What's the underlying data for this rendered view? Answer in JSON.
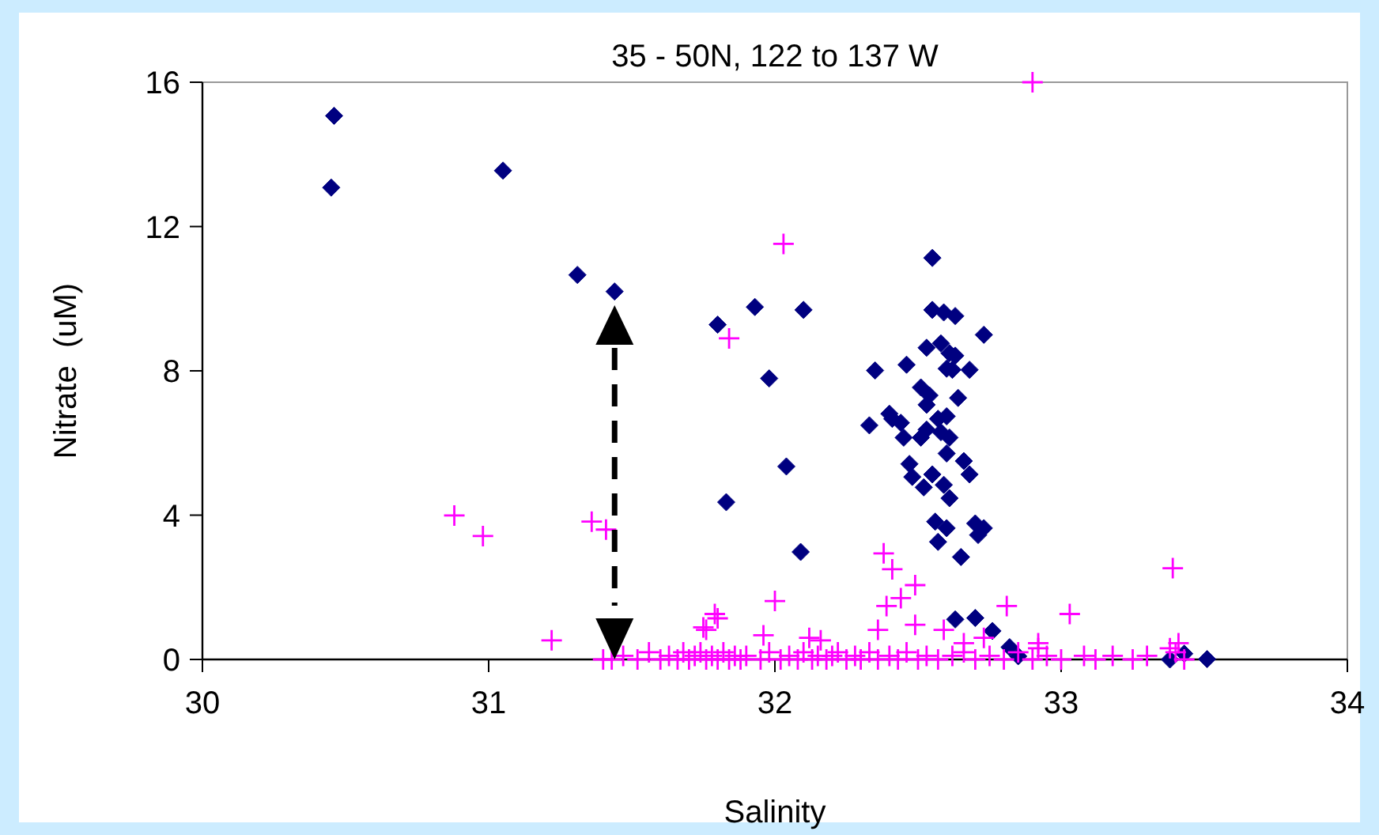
{
  "chart_data": {
    "type": "scatter",
    "title": "35 - 50N, 122 to 137 W",
    "xlabel": "Salinity",
    "ylabel": "Nitrate  (uM)",
    "xlim": [
      30,
      34
    ],
    "xticks": [
      30,
      31,
      32,
      33,
      34
    ],
    "ylim": [
      0,
      16
    ],
    "yticks": [
      0,
      4,
      8,
      12,
      16
    ],
    "grid": false,
    "series": [
      {
        "color": "#000080",
        "marker": "diamond",
        "x": [
          30.46,
          30.45,
          31.05,
          31.31,
          31.44,
          31.8,
          31.93,
          31.83,
          32.55,
          32.1,
          32.55,
          32.59,
          32.63,
          32.73,
          32.53,
          32.58,
          32.61,
          32.63,
          32.6,
          32.62,
          32.68,
          32.35,
          32.46,
          31.98,
          32.51,
          32.54,
          32.53,
          32.64,
          32.33,
          32.4,
          32.41,
          32.44,
          32.45,
          32.51,
          32.53,
          32.57,
          32.6,
          32.58,
          32.61,
          32.6,
          32.04,
          32.47,
          32.48,
          32.55,
          32.66,
          32.68,
          32.52,
          32.59,
          32.61,
          32.56,
          32.6,
          32.7,
          32.73,
          32.71,
          32.57,
          32.09,
          32.65,
          32.63,
          32.7,
          32.76,
          32.82,
          32.85,
          33.38,
          33.43,
          33.51
        ],
        "values": [
          15.07,
          13.08,
          13.55,
          10.66,
          10.2,
          9.28,
          9.77,
          4.36,
          11.13,
          9.69,
          9.69,
          9.62,
          9.52,
          9.0,
          8.64,
          8.76,
          8.49,
          8.42,
          8.06,
          8.03,
          8.03,
          8.01,
          8.17,
          7.79,
          7.54,
          7.32,
          7.06,
          7.25,
          6.49,
          6.81,
          6.67,
          6.56,
          6.15,
          6.15,
          6.37,
          6.67,
          6.74,
          6.3,
          6.15,
          5.71,
          5.35,
          5.42,
          5.06,
          5.13,
          5.5,
          5.13,
          4.77,
          4.84,
          4.47,
          3.82,
          3.64,
          3.77,
          3.64,
          3.45,
          3.26,
          2.98,
          2.84,
          1.11,
          1.15,
          0.79,
          0.34,
          0.09,
          0.0,
          0.16,
          0.01
        ]
      },
      {
        "color": "#ff00ff",
        "marker": "cross",
        "x": [
          32.9,
          32.03,
          30.88,
          30.98,
          31.36,
          31.41,
          31.84,
          31.22,
          31.8,
          31.76,
          32.38,
          32.41,
          32.49,
          32.44,
          32.39,
          32.0,
          31.79,
          31.75,
          31.96,
          32.36,
          32.49,
          32.59,
          32.81,
          33.03,
          32.66,
          32.73,
          32.92,
          32.12,
          32.16,
          33.39,
          32.92,
          33.38,
          33.41,
          31.4,
          31.43,
          31.47,
          31.52,
          31.56,
          31.6,
          31.63,
          31.66,
          31.68,
          31.7,
          31.72,
          31.74,
          31.76,
          31.78,
          31.8,
          31.82,
          31.84,
          31.86,
          31.88,
          31.9,
          31.95,
          31.98,
          32.02,
          32.05,
          32.08,
          32.1,
          32.13,
          32.15,
          32.18,
          32.2,
          32.22,
          32.25,
          32.28,
          32.3,
          32.33,
          32.36,
          32.4,
          32.43,
          32.46,
          32.5,
          32.53,
          32.57,
          32.62,
          32.66,
          32.7,
          32.75,
          32.8,
          32.85,
          32.9,
          32.95,
          33.0,
          33.08,
          33.12,
          33.18,
          33.25,
          33.3,
          33.4,
          33.43
        ],
        "values": [
          16,
          11.52,
          3.99,
          3.42,
          3.82,
          3.6,
          8.9,
          0.53,
          1.14,
          0.82,
          2.94,
          2.5,
          2.06,
          1.7,
          1.48,
          1.62,
          1.26,
          0.89,
          0.67,
          0.82,
          0.96,
          0.82,
          1.48,
          1.26,
          0.45,
          0.6,
          0.45,
          0.6,
          0.53,
          2.53,
          0.31,
          0.31,
          0.45,
          0,
          0,
          0.1,
          0,
          0.2,
          0,
          0.1,
          0,
          0.2,
          0,
          0.1,
          0.2,
          0,
          0.1,
          0,
          0.2,
          0,
          0.1,
          0,
          0.1,
          0,
          0.2,
          0,
          0.1,
          0,
          0.2,
          0,
          0.1,
          0,
          0.1,
          0.2,
          0,
          0.1,
          0,
          0.2,
          0,
          0.1,
          0,
          0.2,
          0,
          0.1,
          0,
          0.1,
          0.2,
          0,
          0.1,
          0,
          0.2,
          0,
          0.1,
          0,
          0.1,
          0,
          0.1,
          0,
          0.1,
          0.2,
          0
        ]
      }
    ]
  }
}
